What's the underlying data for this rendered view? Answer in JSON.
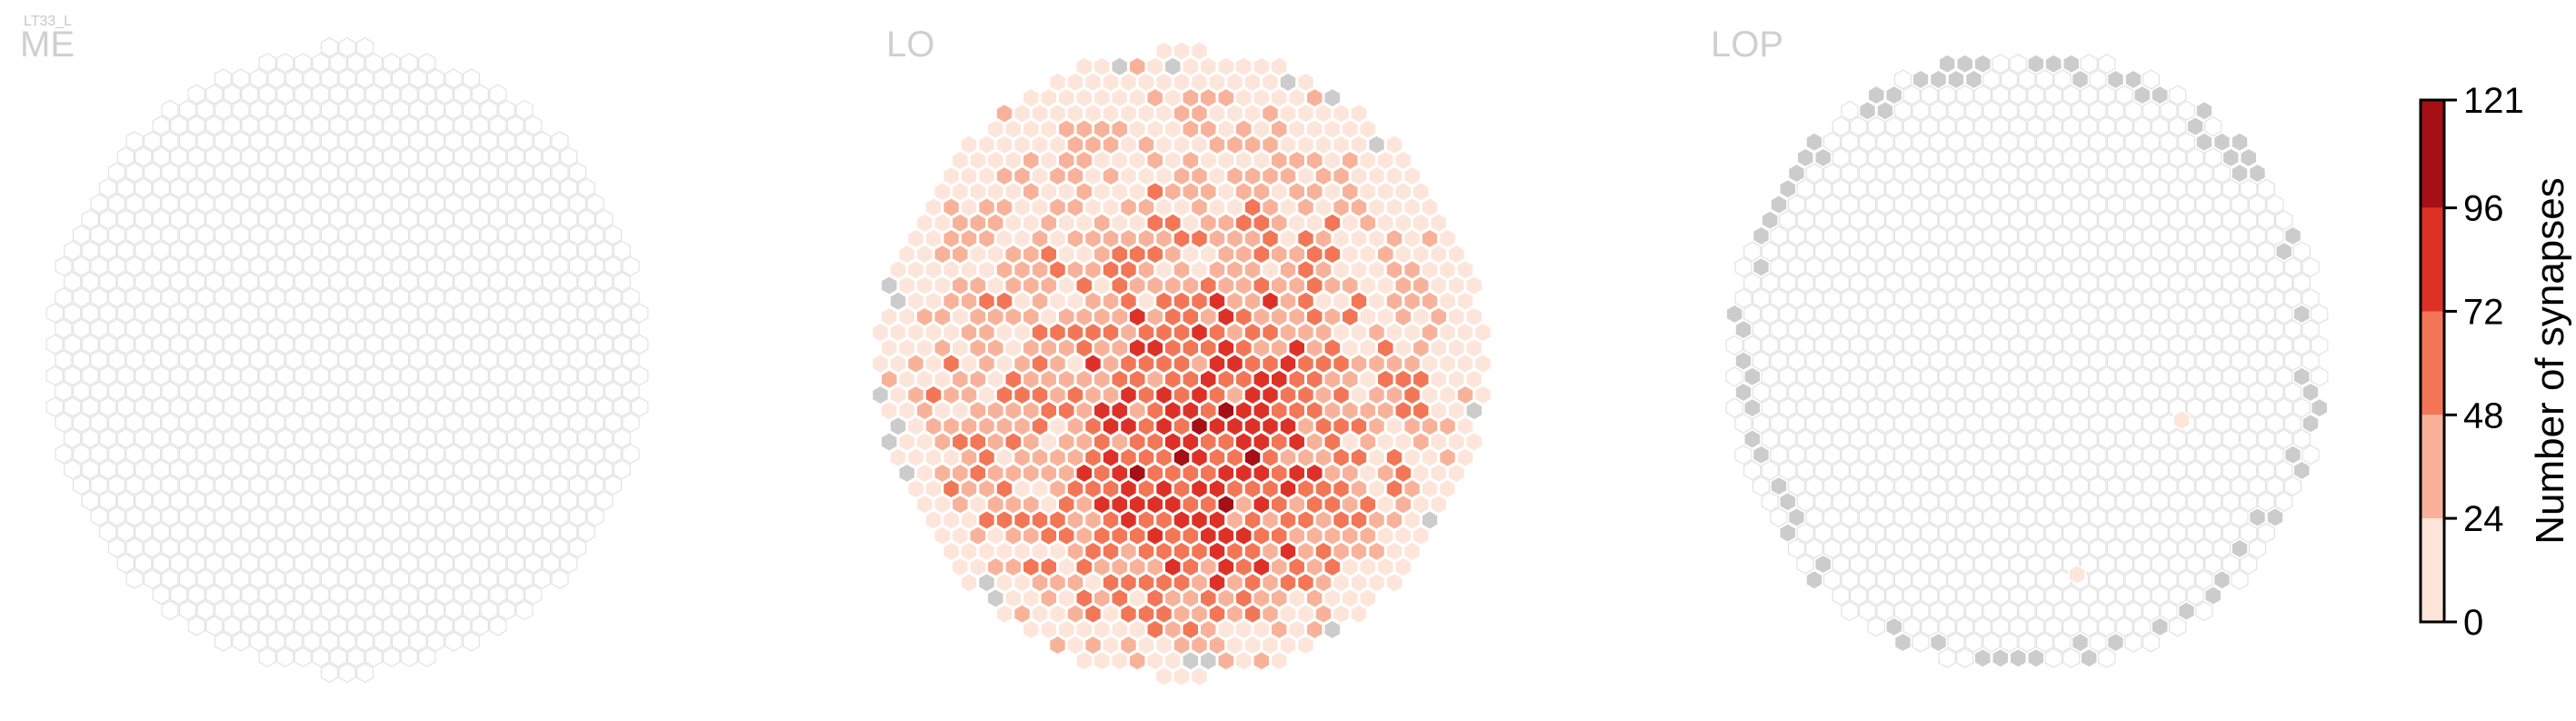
{
  "chart_data": {
    "type": "heatmap",
    "cell_type_label": "LT33_L",
    "panels": [
      {
        "key": "me",
        "title": "ME",
        "summary": "no synapses in any column; all columns drawn as empty outlines"
      },
      {
        "key": "lo",
        "title": "LO",
        "summary": "synapses in almost all columns; highest counts (about 96-121) near the lower centre; a few columns at the rim have no data (grey)"
      },
      {
        "key": "lop",
        "title": "LOP",
        "summary": "almost all columns have 0 synapses; two columns with low counts (about 1-24); many rim columns have no data (grey)"
      }
    ],
    "colorbar": {
      "label": "Number of synapses",
      "ticks": [
        "0",
        "24",
        "48",
        "72",
        "96",
        "121"
      ],
      "range": [
        0,
        121
      ],
      "bins": [
        {
          "from": 0,
          "to": 24,
          "color": "#fde5da"
        },
        {
          "from": 24,
          "to": 48,
          "color": "#f9b29a"
        },
        {
          "from": 48,
          "to": 72,
          "color": "#f37656"
        },
        {
          "from": 72,
          "to": 96,
          "color": "#dd3128"
        },
        {
          "from": 96,
          "to": 121,
          "color": "#a50f15"
        }
      ]
    },
    "colors": {
      "no_data": "#cccccc",
      "empty_outline": "#e2e2e2",
      "cell_edge": "#ffffff"
    }
  }
}
